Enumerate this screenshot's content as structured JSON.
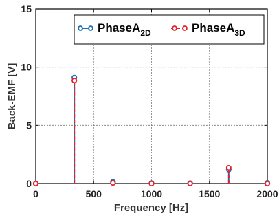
{
  "chart_data": {
    "type": "stem",
    "xlabel": "Frequency [Hz]",
    "ylabel": "Back-EMF [V]",
    "xlim": [
      0,
      2000
    ],
    "ylim": [
      0,
      15
    ],
    "xticks": [
      0,
      500,
      1000,
      1500,
      2000
    ],
    "yticks": [
      0,
      5,
      10,
      15
    ],
    "grid": true,
    "legend_position": "top-right",
    "series": [
      {
        "name": "PhaseA",
        "subscript": "2D",
        "color": "#1f6fb4",
        "line_style": "solid",
        "x": [
          0,
          333.3,
          666.7,
          1000,
          1333.3,
          1666.7,
          2000
        ],
        "y": [
          0,
          9.1,
          0.15,
          0.03,
          0.03,
          1.2,
          0.05
        ]
      },
      {
        "name": "PhaseA",
        "subscript": "3D",
        "color": "#e8202a",
        "line_style": "dashed",
        "x": [
          0,
          333.3,
          666.7,
          1000,
          1333.3,
          1666.7,
          2000
        ],
        "y": [
          0,
          8.85,
          0.05,
          0.0,
          0.0,
          1.35,
          0.0
        ]
      }
    ]
  }
}
